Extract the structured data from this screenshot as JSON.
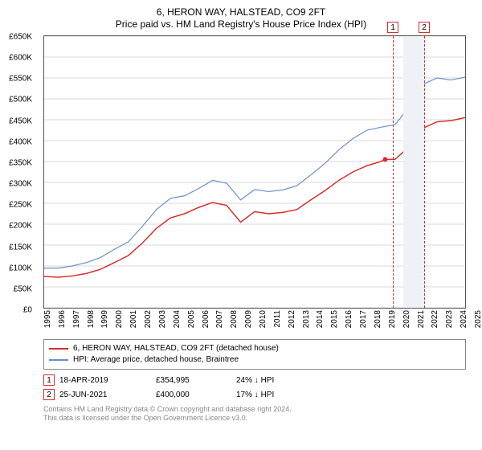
{
  "title": {
    "line1": "6, HERON WAY, HALSTEAD, CO9 2FT",
    "line2": "Price paid vs. HM Land Registry's House Price Index (HPI)"
  },
  "chart": {
    "type": "line",
    "background_color": "#ffffff",
    "grid_color": "#d9d9d9",
    "axis_color": "#555555",
    "y": {
      "min": 0,
      "max": 650000,
      "step": 50000,
      "ticks": [
        "£0",
        "£50K",
        "£100K",
        "£150K",
        "£200K",
        "£250K",
        "£300K",
        "£350K",
        "£400K",
        "£450K",
        "£500K",
        "£550K",
        "£600K",
        "£650K"
      ]
    },
    "x": {
      "min": 1995,
      "max": 2025,
      "step": 1,
      "ticks": [
        "1995",
        "1996",
        "1997",
        "1998",
        "1999",
        "2000",
        "2001",
        "2002",
        "2003",
        "2004",
        "2005",
        "2006",
        "2007",
        "2008",
        "2009",
        "2010",
        "2011",
        "2012",
        "2013",
        "2014",
        "2015",
        "2016",
        "2017",
        "2018",
        "2019",
        "2020",
        "2021",
        "2022",
        "2023",
        "2024",
        "2025"
      ]
    },
    "shade_band": {
      "from": 2020.0,
      "to": 2021.5,
      "color": "#eef1f6"
    },
    "sale_markers": [
      {
        "idx": "1",
        "x": 2019.3,
        "y": 354995,
        "label_top": true
      },
      {
        "idx": "2",
        "x": 2021.48,
        "y": 400000,
        "label_top": true
      }
    ],
    "marker_box_border": "#d82c2c",
    "dashed_line_color": "#d82c2c",
    "series": [
      {
        "name": "property",
        "color": "#d82c2c",
        "width": 1.5,
        "points": [
          [
            1995,
            75000
          ],
          [
            1996,
            73000
          ],
          [
            1997,
            76000
          ],
          [
            1998,
            82000
          ],
          [
            1999,
            92000
          ],
          [
            2000,
            108000
          ],
          [
            2001,
            125000
          ],
          [
            2002,
            155000
          ],
          [
            2003,
            190000
          ],
          [
            2004,
            215000
          ],
          [
            2005,
            225000
          ],
          [
            2006,
            240000
          ],
          [
            2007,
            252000
          ],
          [
            2008,
            245000
          ],
          [
            2009,
            205000
          ],
          [
            2010,
            230000
          ],
          [
            2011,
            225000
          ],
          [
            2012,
            228000
          ],
          [
            2013,
            235000
          ],
          [
            2014,
            258000
          ],
          [
            2015,
            280000
          ],
          [
            2016,
            305000
          ],
          [
            2017,
            325000
          ],
          [
            2018,
            340000
          ],
          [
            2019,
            350000
          ],
          [
            2019.3,
            354995
          ],
          [
            2020,
            355000
          ],
          [
            2021,
            385000
          ],
          [
            2021.48,
            400000
          ],
          [
            2022,
            430000
          ],
          [
            2023,
            445000
          ],
          [
            2024,
            448000
          ],
          [
            2025,
            455000
          ]
        ]
      },
      {
        "name": "hpi",
        "color": "#6a8fc7",
        "width": 1.2,
        "points": [
          [
            1995,
            95000
          ],
          [
            1996,
            95000
          ],
          [
            1997,
            100000
          ],
          [
            1998,
            108000
          ],
          [
            1999,
            120000
          ],
          [
            2000,
            140000
          ],
          [
            2001,
            158000
          ],
          [
            2002,
            195000
          ],
          [
            2003,
            235000
          ],
          [
            2004,
            262000
          ],
          [
            2005,
            268000
          ],
          [
            2006,
            285000
          ],
          [
            2007,
            305000
          ],
          [
            2008,
            298000
          ],
          [
            2009,
            258000
          ],
          [
            2010,
            283000
          ],
          [
            2011,
            278000
          ],
          [
            2012,
            282000
          ],
          [
            2013,
            292000
          ],
          [
            2014,
            318000
          ],
          [
            2015,
            345000
          ],
          [
            2016,
            378000
          ],
          [
            2017,
            405000
          ],
          [
            2018,
            425000
          ],
          [
            2019,
            432000
          ],
          [
            2020,
            438000
          ],
          [
            2021,
            480000
          ],
          [
            2022,
            535000
          ],
          [
            2023,
            550000
          ],
          [
            2024,
            545000
          ],
          [
            2025,
            552000
          ]
        ]
      }
    ],
    "sale_points_color": "#d82c2c",
    "sale_points_radius": 3
  },
  "legend": {
    "items": [
      {
        "color": "#d82c2c",
        "label": "6, HERON WAY, HALSTEAD, CO9 2FT (detached house)"
      },
      {
        "color": "#6a8fc7",
        "label": "HPI: Average price, detached house, Braintree"
      }
    ]
  },
  "sales": [
    {
      "idx": "1",
      "date": "18-APR-2019",
      "price": "£354,995",
      "delta": "24% ↓ HPI"
    },
    {
      "idx": "2",
      "date": "25-JUN-2021",
      "price": "£400,000",
      "delta": "17% ↓ HPI"
    }
  ],
  "footer": {
    "line1": "Contains HM Land Registry data © Crown copyright and database right 2024.",
    "line2": "This data is licensed under the Open Government Licence v3.0."
  }
}
